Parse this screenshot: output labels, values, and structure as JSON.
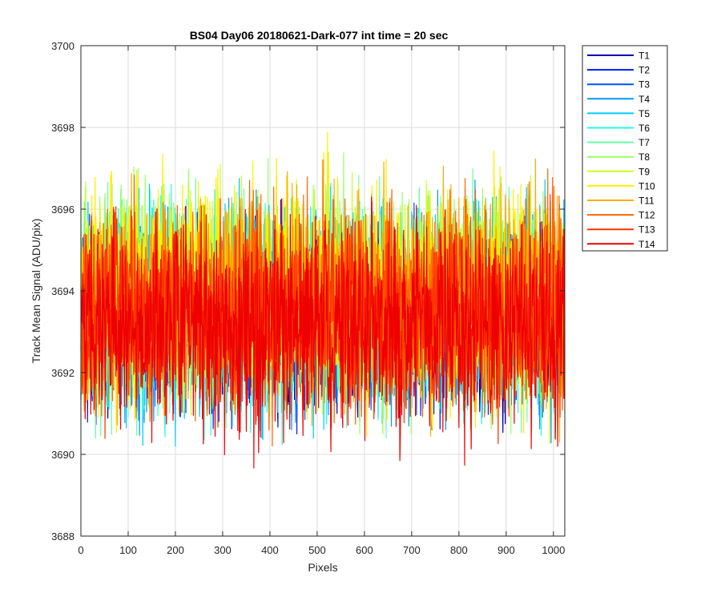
{
  "chart_data": {
    "type": "line",
    "title": "BS04 Day06 20180621-Dark-077 int time = 20 sec",
    "xlabel": "Pixels",
    "ylabel": "Track Mean Signal (ADU/pix)",
    "xlim": [
      0,
      1024
    ],
    "ylim": [
      3688,
      3700
    ],
    "xticks": [
      0,
      100,
      200,
      300,
      400,
      500,
      600,
      700,
      800,
      900,
      1000
    ],
    "yticks": [
      3688,
      3690,
      3692,
      3694,
      3696,
      3698,
      3700
    ],
    "grid": true,
    "legend_position": "outside-top-right",
    "n_pixels": 1024,
    "series": [
      {
        "name": "T1",
        "color": "#0000b5",
        "mean": 3693.3,
        "min": 3690.5,
        "max": 3697.6
      },
      {
        "name": "T2",
        "color": "#0019ff",
        "mean": 3693.3,
        "min": 3690.5,
        "max": 3697.5
      },
      {
        "name": "T3",
        "color": "#0055ff",
        "mean": 3693.4,
        "min": 3690.3,
        "max": 3697.4
      },
      {
        "name": "T4",
        "color": "#0099ff",
        "mean": 3693.4,
        "min": 3689.8,
        "max": 3697.5
      },
      {
        "name": "T5",
        "color": "#00ccff",
        "mean": 3693.5,
        "min": 3689.5,
        "max": 3697.8
      },
      {
        "name": "T6",
        "color": "#22ffdd",
        "mean": 3693.6,
        "min": 3690.2,
        "max": 3698.6
      },
      {
        "name": "T7",
        "color": "#66ffaa",
        "mean": 3693.7,
        "min": 3690.4,
        "max": 3698.9
      },
      {
        "name": "T8",
        "color": "#99ff66",
        "mean": 3693.8,
        "min": 3690.5,
        "max": 3699.1
      },
      {
        "name": "T9",
        "color": "#ccff22",
        "mean": 3693.9,
        "min": 3690.6,
        "max": 3698.5
      },
      {
        "name": "T10",
        "color": "#ffee00",
        "mean": 3693.9,
        "min": 3689.6,
        "max": 3698.8
      },
      {
        "name": "T11",
        "color": "#ffaa00",
        "mean": 3693.8,
        "min": 3690.3,
        "max": 3698.6
      },
      {
        "name": "T12",
        "color": "#ff6600",
        "mean": 3693.6,
        "min": 3690.2,
        "max": 3698.6
      },
      {
        "name": "T13",
        "color": "#ff3300",
        "mean": 3693.4,
        "min": 3690.0,
        "max": 3697.6
      },
      {
        "name": "T14",
        "color": "#ee0000",
        "mean": 3693.2,
        "min": 3689.1,
        "max": 3697.4
      }
    ]
  }
}
